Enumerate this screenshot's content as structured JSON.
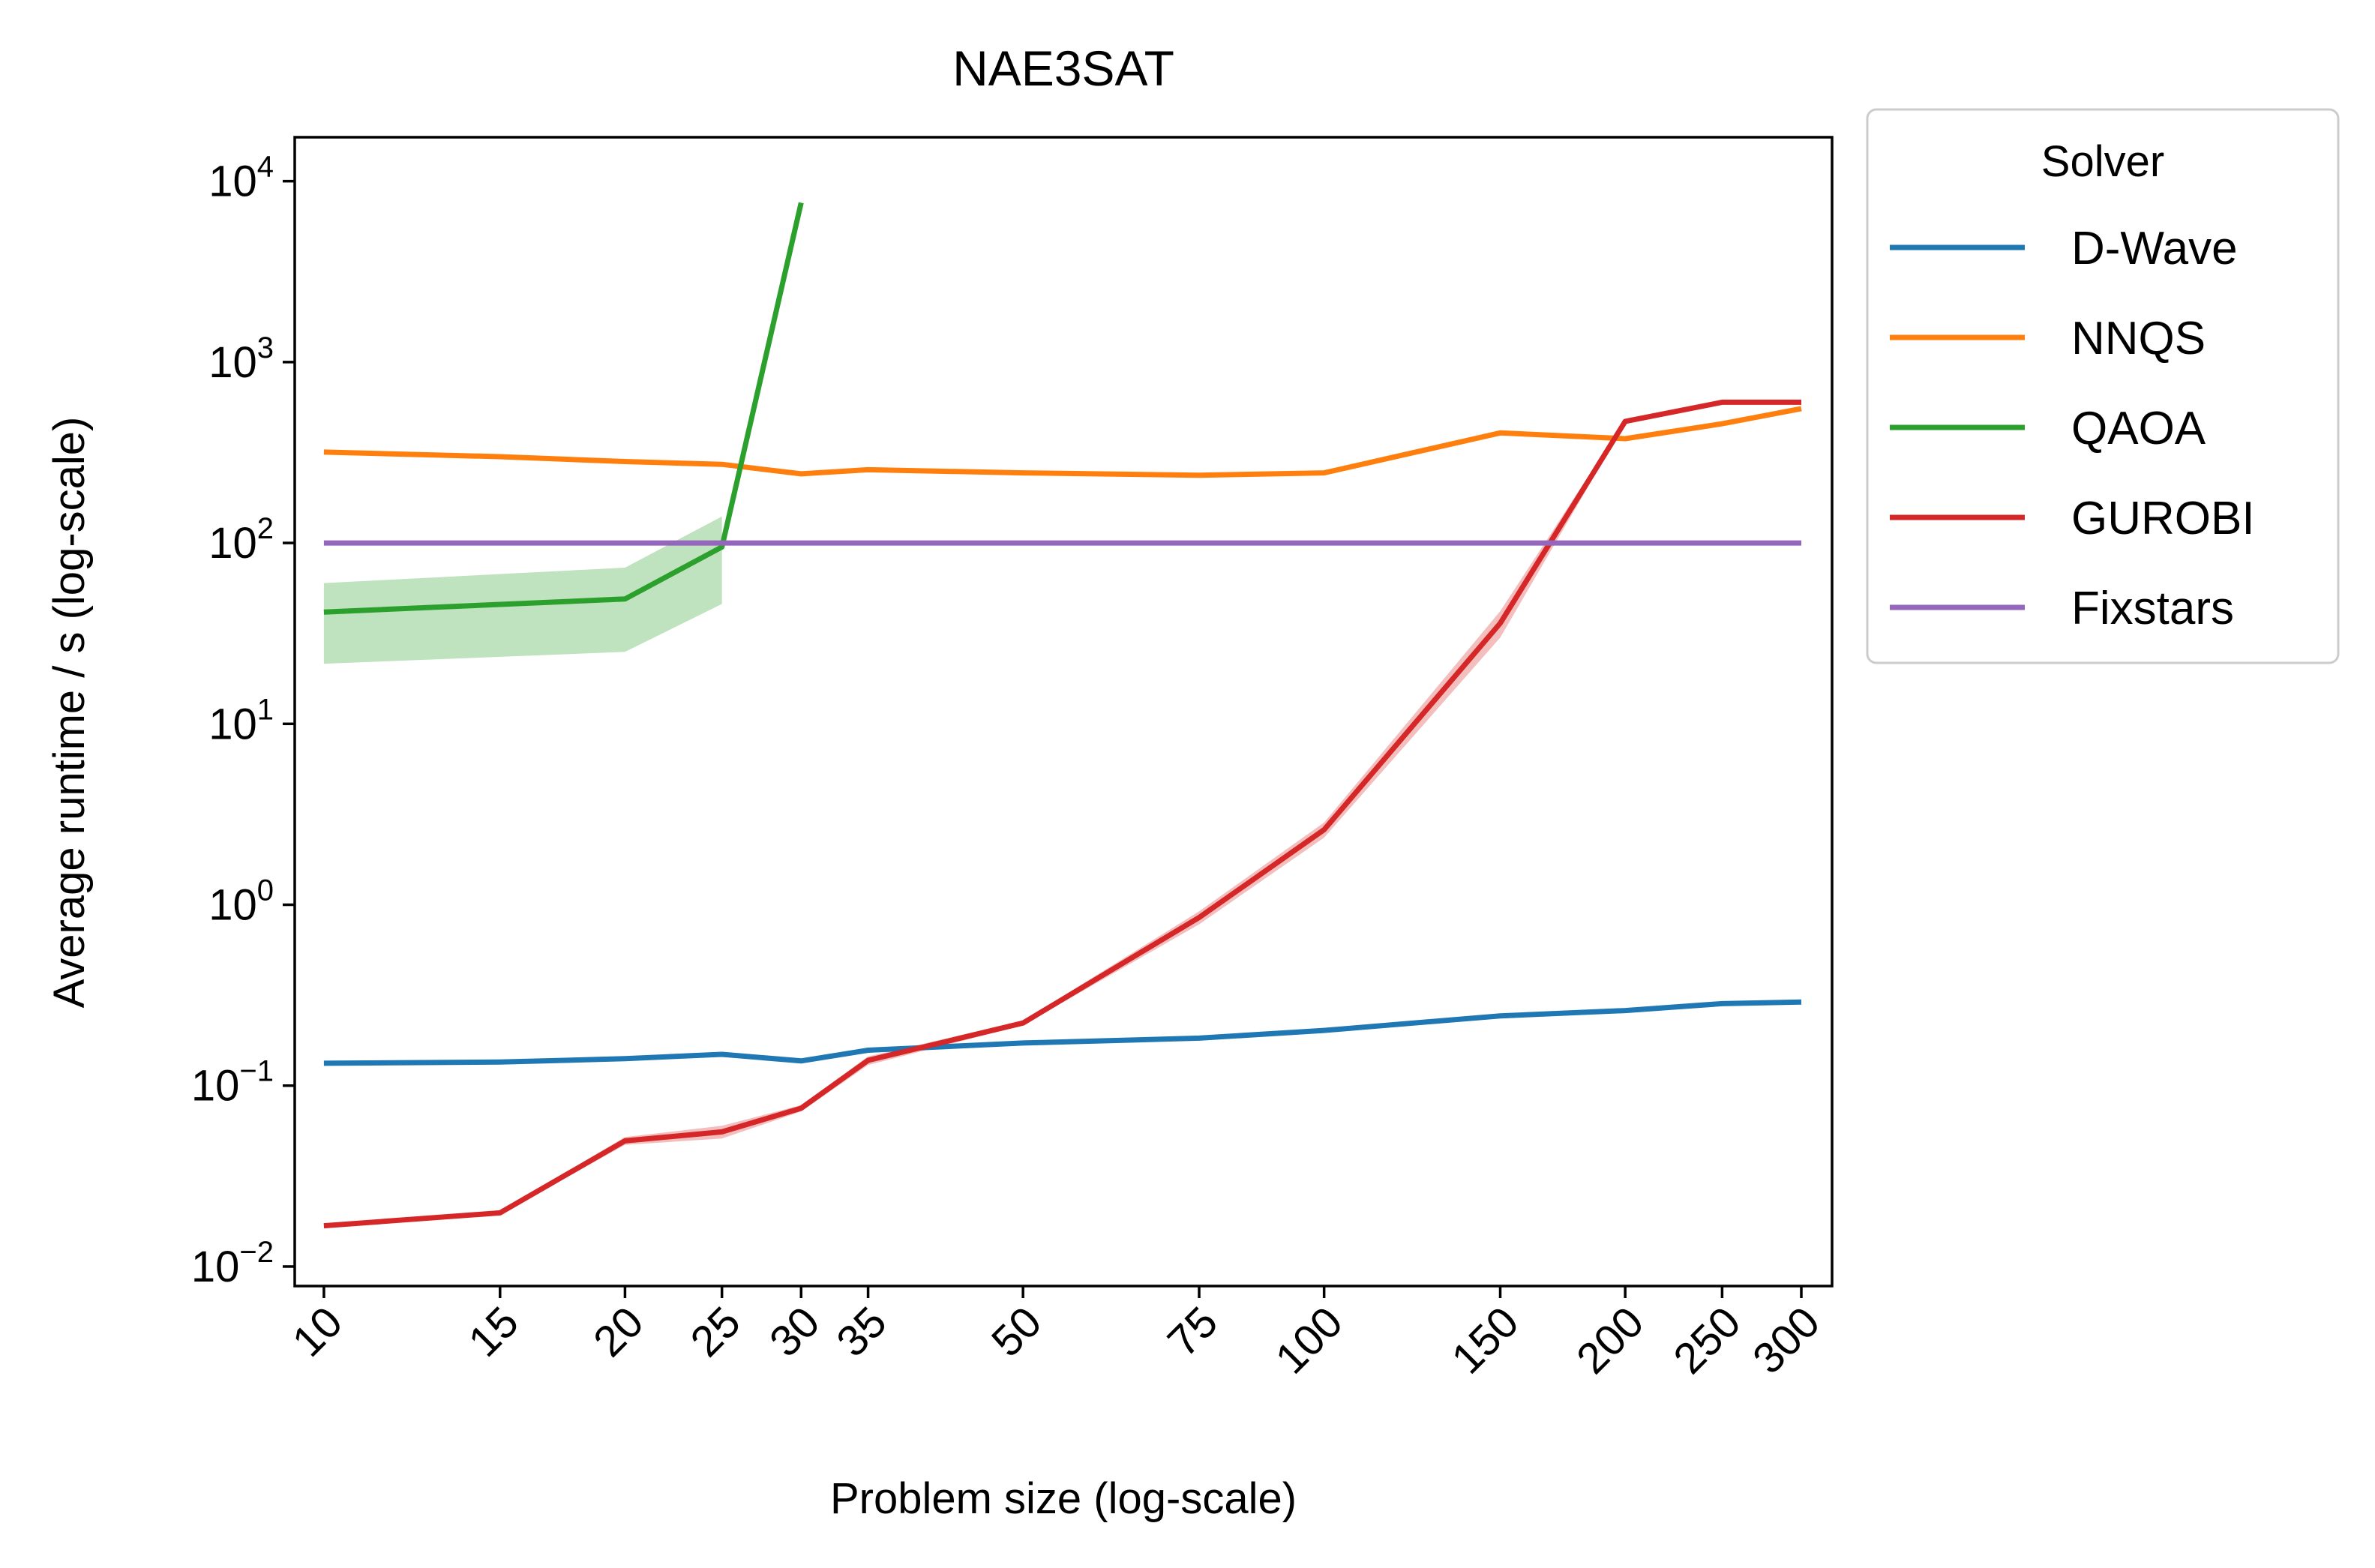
{
  "chart_data": {
    "type": "line",
    "title": "NAE3SAT",
    "xlabel": "Problem size (log-scale)",
    "ylabel": "Average runtime / s (log-scale)",
    "x_scale": "log",
    "y_scale": "log",
    "xlim": [
      9.35,
      322
    ],
    "ylim": [
      0.0078,
      17500
    ],
    "x_ticks": [
      10,
      15,
      20,
      25,
      30,
      35,
      50,
      75,
      100,
      150,
      200,
      250,
      300
    ],
    "x_tick_labels": [
      "10",
      "15",
      "20",
      "25",
      "30",
      "35",
      "50",
      "75",
      "100",
      "150",
      "200",
      "250",
      "300"
    ],
    "y_ticks": [
      {
        "value": 0.01,
        "base": "10",
        "exp": "−2"
      },
      {
        "value": 0.1,
        "base": "10",
        "exp": "−1"
      },
      {
        "value": 1,
        "base": "10",
        "exp": "0"
      },
      {
        "value": 10,
        "base": "10",
        "exp": "1"
      },
      {
        "value": 100,
        "base": "10",
        "exp": "2"
      },
      {
        "value": 1000,
        "base": "10",
        "exp": "3"
      },
      {
        "value": 10000,
        "base": "10",
        "exp": "4"
      }
    ],
    "grid": false,
    "legend": {
      "title": "Solver",
      "placement": "outside-top-right"
    },
    "series": [
      {
        "name": "D-Wave",
        "color": "#1f77b4",
        "points": [
          [
            10,
            0.133
          ],
          [
            15,
            0.135
          ],
          [
            20,
            0.141
          ],
          [
            25,
            0.149
          ],
          [
            30,
            0.137
          ],
          [
            35,
            0.157
          ],
          [
            50,
            0.172
          ],
          [
            75,
            0.183
          ],
          [
            100,
            0.202
          ],
          [
            150,
            0.243
          ],
          [
            200,
            0.26
          ],
          [
            250,
            0.284
          ],
          [
            300,
            0.29
          ]
        ]
      },
      {
        "name": "NNQS",
        "color": "#ff7f0e",
        "points": [
          [
            10,
            318
          ],
          [
            15,
            300
          ],
          [
            20,
            282
          ],
          [
            25,
            272
          ],
          [
            30,
            241
          ],
          [
            35,
            254
          ],
          [
            50,
            244
          ],
          [
            75,
            237
          ],
          [
            100,
            244
          ],
          [
            150,
            406
          ],
          [
            200,
            377
          ],
          [
            250,
            456
          ],
          [
            300,
            553
          ]
        ]
      },
      {
        "name": "QAOA",
        "color": "#2ca02c",
        "points": [
          [
            10,
            41.5
          ],
          [
            20,
            49
          ],
          [
            25,
            95
          ],
          [
            30,
            7600
          ]
        ],
        "band": [
          [
            10,
            21.5,
            60
          ],
          [
            20,
            25,
            73
          ],
          [
            25,
            46,
            140
          ]
        ]
      },
      {
        "name": "GUROBI",
        "color": "#d62728",
        "points": [
          [
            10,
            0.0168
          ],
          [
            15,
            0.0198
          ],
          [
            20,
            0.0495
          ],
          [
            25,
            0.0555
          ],
          [
            30,
            0.075
          ],
          [
            35,
            0.138
          ],
          [
            50,
            0.222
          ],
          [
            75,
            0.85
          ],
          [
            100,
            2.6
          ],
          [
            150,
            36
          ],
          [
            200,
            470
          ],
          [
            250,
            600
          ],
          [
            300,
            600
          ]
        ],
        "band": [
          [
            10,
            0.0165,
            0.0172
          ],
          [
            15,
            0.0195,
            0.0202
          ],
          [
            20,
            0.047,
            0.052
          ],
          [
            25,
            0.051,
            0.06
          ],
          [
            30,
            0.072,
            0.078
          ],
          [
            35,
            0.13,
            0.145
          ],
          [
            50,
            0.216,
            0.228
          ],
          [
            75,
            0.78,
            0.92
          ],
          [
            100,
            2.35,
            2.85
          ],
          [
            150,
            30,
            42
          ],
          [
            200,
            460,
            480
          ],
          [
            250,
            590,
            610
          ],
          [
            300,
            590,
            610
          ]
        ]
      },
      {
        "name": "Fixstars",
        "color": "#9467bd",
        "points": [
          [
            10,
            100
          ],
          [
            15,
            100
          ],
          [
            20,
            100
          ],
          [
            25,
            100
          ],
          [
            30,
            100
          ],
          [
            35,
            100
          ],
          [
            50,
            100
          ],
          [
            75,
            100
          ],
          [
            100,
            100
          ],
          [
            150,
            100
          ],
          [
            200,
            100
          ],
          [
            250,
            100
          ],
          [
            300,
            100
          ]
        ]
      }
    ]
  }
}
